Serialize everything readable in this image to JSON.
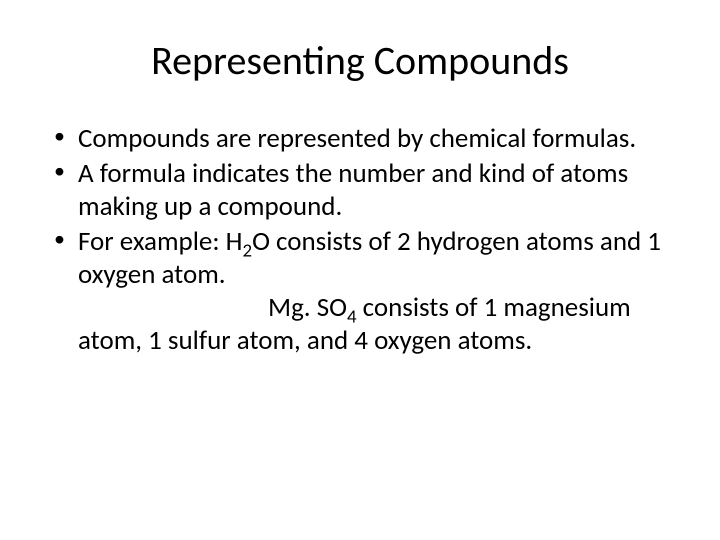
{
  "title": "Representing Compounds",
  "bullets": {
    "b1": "Compounds are represented by chemical formulas.",
    "b2": "A formula indicates the number and kind of atoms making up a compound.",
    "b3_part1": "For example:  H",
    "b3_sub1": "2",
    "b3_part2": "O consists of 2 hydrogen atoms and 1 oxygen atom.",
    "b3_line2a": "Mg. SO",
    "b3_sub2": "4",
    "b3_line2b": " consists of 1 magnesium",
    "b3_line3": "atom, 1 sulfur atom, and 4 oxygen atoms."
  },
  "colors": {
    "background": "#ffffff",
    "text": "#000000"
  },
  "fonts": {
    "title_size": 40,
    "body_size": 27
  }
}
